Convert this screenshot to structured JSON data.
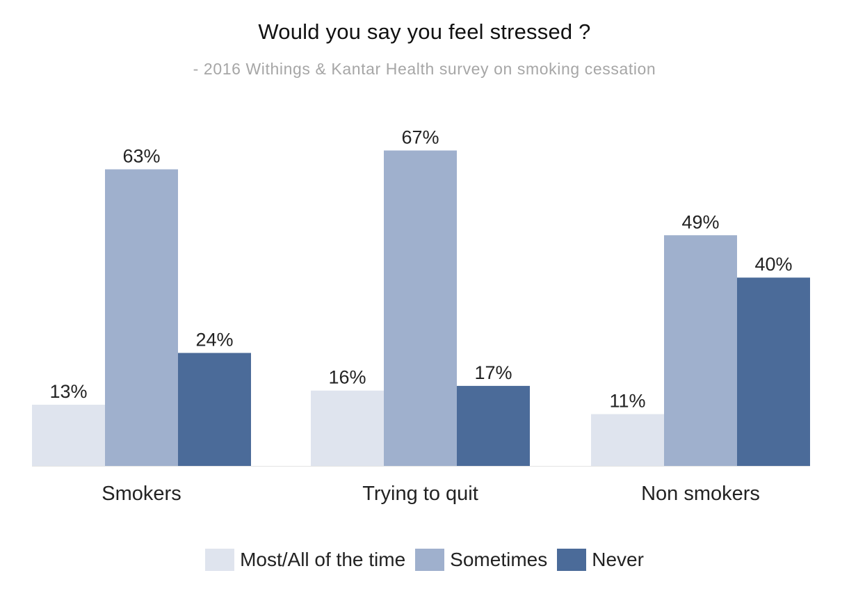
{
  "chart_data": {
    "type": "bar",
    "title": "Would you say you feel stressed ?",
    "subtitle": "- 2016 Withings & Kantar Health survey on smoking cessation",
    "xlabel": "",
    "ylabel": "",
    "ylim": [
      0,
      70
    ],
    "grid": false,
    "legend_placement": "bottom",
    "categories": [
      "Smokers",
      "Trying to quit",
      "Non smokers"
    ],
    "series": [
      {
        "name": "Most/All of the time",
        "color": "#dfe4ee",
        "values": [
          13,
          16,
          11
        ],
        "labels": [
          "13%",
          "16%",
          "11%"
        ]
      },
      {
        "name": "Sometimes",
        "color": "#9fb0cd",
        "values": [
          63,
          67,
          49
        ],
        "labels": [
          "63%",
          "67%",
          "49%"
        ]
      },
      {
        "name": "Never",
        "color": "#4b6b99",
        "values": [
          24,
          17,
          40
        ],
        "labels": [
          "24%",
          "17%",
          "40%"
        ]
      }
    ]
  }
}
